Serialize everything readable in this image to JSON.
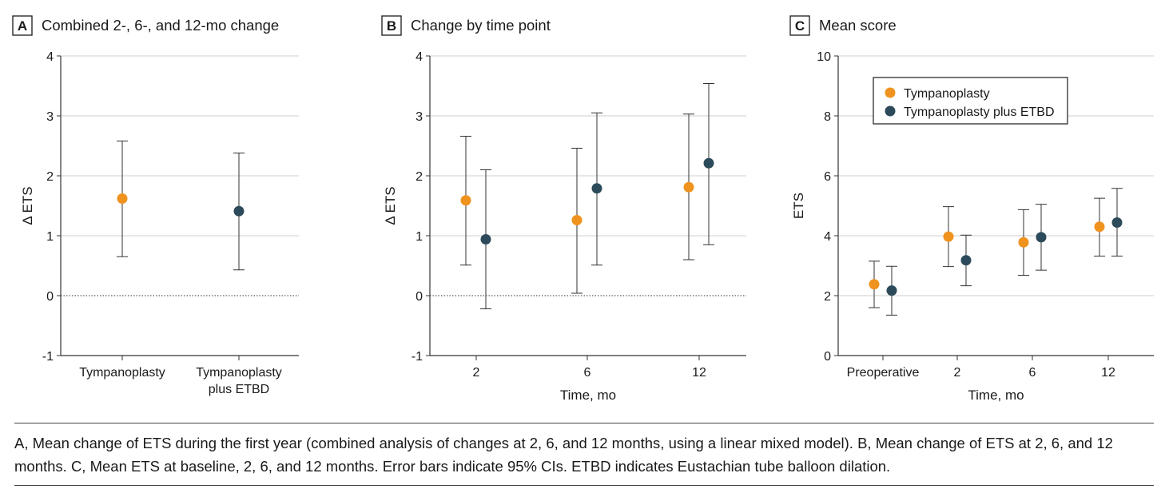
{
  "chart_data": [
    {
      "panel": "A",
      "type": "scatter",
      "title": "Combined 2-, 6-, and 12-mo change",
      "xlabel": "",
      "ylabel": "Δ ETS",
      "ylim": [
        -1,
        4
      ],
      "yticks": [
        "-1",
        "0",
        "1",
        "2",
        "3",
        "4"
      ],
      "grid": true,
      "reference_line": 0,
      "categories": [
        "Tympanoplasty",
        "Tympanoplasty plus ETBD"
      ],
      "category_labels": [
        [
          "Tympanoplasty"
        ],
        [
          "Tympanoplasty",
          "plus ETBD"
        ]
      ],
      "series": [
        {
          "color": "#f0921e",
          "points": [
            {
              "category": 0,
              "y": 1.62,
              "lower": 0.65,
              "upper": 2.58
            }
          ]
        },
        {
          "color": "#2c4a59",
          "points": [
            {
              "category": 1,
              "y": 1.41,
              "lower": 0.43,
              "upper": 2.38
            }
          ]
        }
      ]
    },
    {
      "panel": "B",
      "type": "scatter",
      "title": "Change by time point",
      "xlabel": "Time, mo",
      "ylabel": "Δ ETS",
      "ylim": [
        -1,
        4
      ],
      "yticks": [
        "-1",
        "0",
        "1",
        "2",
        "3",
        "4"
      ],
      "grid": true,
      "reference_line": 0,
      "categories": [
        "2",
        "6",
        "12"
      ],
      "category_labels": [
        [
          "2"
        ],
        [
          "6"
        ],
        [
          "12"
        ]
      ],
      "series": [
        {
          "color": "#f0921e",
          "points": [
            {
              "category": 0,
              "y": 1.59,
              "lower": 0.51,
              "upper": 2.66
            },
            {
              "category": 1,
              "y": 1.26,
              "lower": 0.04,
              "upper": 2.46
            },
            {
              "category": 2,
              "y": 1.81,
              "lower": 0.6,
              "upper": 3.03
            }
          ]
        },
        {
          "color": "#2c4a59",
          "points": [
            {
              "category": 0,
              "y": 0.94,
              "lower": -0.22,
              "upper": 2.1
            },
            {
              "category": 1,
              "y": 1.79,
              "lower": 0.51,
              "upper": 3.05
            },
            {
              "category": 2,
              "y": 2.21,
              "lower": 0.85,
              "upper": 3.54
            }
          ]
        }
      ]
    },
    {
      "panel": "C",
      "type": "scatter",
      "title": "Mean score",
      "xlabel": "Time, mo",
      "ylabel": "ETS",
      "ylim": [
        0,
        10
      ],
      "yticks": [
        "0",
        "2",
        "4",
        "6",
        "8",
        "10"
      ],
      "grid": true,
      "legend": "top-left",
      "legend_labels": [
        "Tympanoplasty",
        "Tympanoplasty plus ETBD"
      ],
      "categories": [
        "Preoperative",
        "2",
        "6",
        "12"
      ],
      "category_labels": [
        [
          "Preoperative"
        ],
        [
          "2"
        ],
        [
          "6"
        ],
        [
          "12"
        ]
      ],
      "series": [
        {
          "name": "Tympanoplasty",
          "color": "#f0921e",
          "points": [
            {
              "category": 0,
              "y": 2.38,
              "lower": 1.6,
              "upper": 3.15
            },
            {
              "category": 1,
              "y": 3.97,
              "lower": 2.97,
              "upper": 4.97
            },
            {
              "category": 2,
              "y": 3.78,
              "lower": 2.68,
              "upper": 4.87
            },
            {
              "category": 3,
              "y": 4.3,
              "lower": 3.32,
              "upper": 5.25
            }
          ]
        },
        {
          "name": "Tympanoplasty plus ETBD",
          "color": "#2c4a59",
          "points": [
            {
              "category": 0,
              "y": 2.17,
              "lower": 1.35,
              "upper": 2.98
            },
            {
              "category": 1,
              "y": 3.18,
              "lower": 2.33,
              "upper": 4.02
            },
            {
              "category": 2,
              "y": 3.95,
              "lower": 2.85,
              "upper": 5.05
            },
            {
              "category": 3,
              "y": 4.44,
              "lower": 3.32,
              "upper": 5.58
            }
          ]
        }
      ]
    }
  ],
  "caption": "A, Mean change of ETS during the first year (combined analysis of changes at 2, 6, and 12 months, using a linear mixed model). B, Mean change of ETS at 2, 6, and 12 months. C, Mean ETS at baseline, 2, 6, and 12 months. Error bars indicate 95% CIs. ETBD indicates Eustachian tube balloon dilation."
}
